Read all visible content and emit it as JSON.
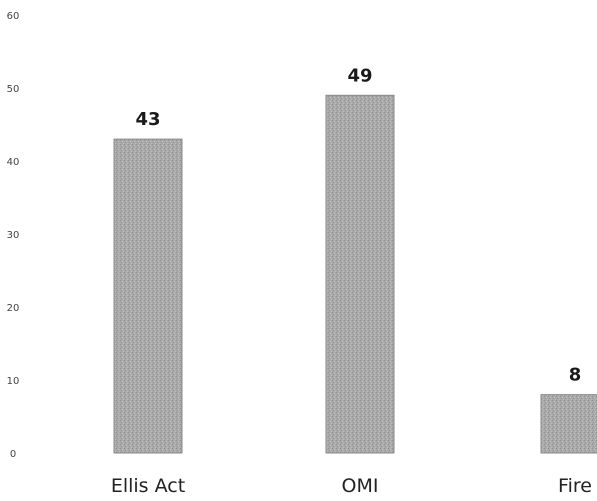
{
  "chart_data": {
    "type": "bar",
    "title": "",
    "xlabel": "",
    "ylabel": "",
    "categories": [
      "Ellis Act",
      "OMI",
      "Fire"
    ],
    "values": [
      43,
      49,
      8
    ],
    "data_labels": [
      "43",
      "49",
      "8"
    ],
    "ylim": [
      0,
      60
    ],
    "yticks": [
      0,
      10,
      20,
      30,
      40,
      50,
      60
    ],
    "ytick_labels": [
      "0",
      "10",
      "20",
      "30",
      "40",
      "50",
      "60"
    ],
    "grid": false,
    "legend": "none",
    "bar_color": "#a9a9a9",
    "bar_edge_color": "#8a8a8a"
  }
}
